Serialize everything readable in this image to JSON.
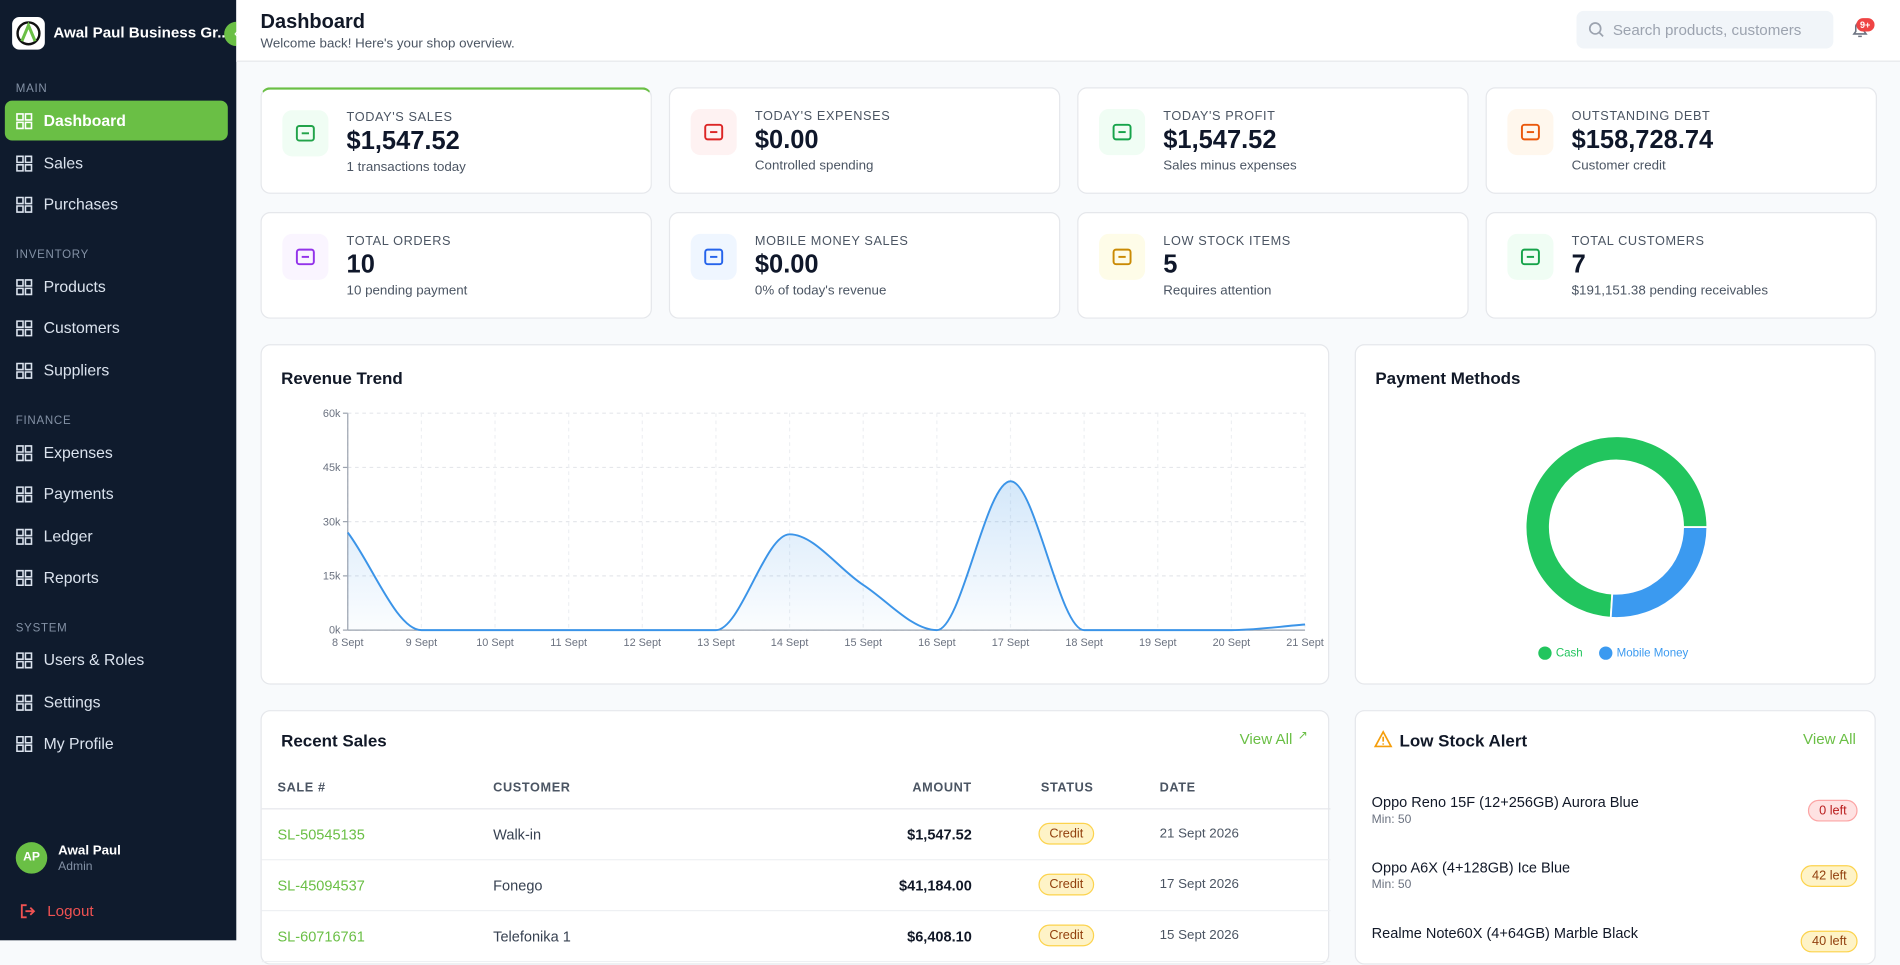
{
  "sidebar": {
    "brand": "Awal Paul Business Gr...",
    "sections": [
      {
        "title": "MAIN",
        "items": [
          "Dashboard",
          "Sales",
          "Purchases"
        ]
      },
      {
        "title": "INVENTORY",
        "items": [
          "Products",
          "Customers",
          "Suppliers"
        ]
      },
      {
        "title": "FINANCE",
        "items": [
          "Expenses",
          "Payments",
          "Ledger",
          "Reports"
        ]
      },
      {
        "title": "SYSTEM",
        "items": [
          "Users & Roles",
          "Settings",
          "My Profile"
        ]
      }
    ],
    "user": {
      "initials": "AP",
      "name": "Awal Paul",
      "role": "Admin"
    },
    "logout": "Logout"
  },
  "header": {
    "title": "Dashboard",
    "subtitle": "Welcome back! Here's your shop overview.",
    "search_placeholder": "Search products, customers",
    "badge": "9+"
  },
  "stats": [
    {
      "label": "TODAY'S SALES",
      "value": "$1,547.52",
      "note": "1 transactions today"
    },
    {
      "label": "TODAY'S EXPENSES",
      "value": "$0.00",
      "note": "Controlled spending"
    },
    {
      "label": "TODAY'S PROFIT",
      "value": "$1,547.52",
      "note": "Sales minus expenses"
    },
    {
      "label": "OUTSTANDING DEBT",
      "value": "$158,728.74",
      "note": "Customer credit"
    },
    {
      "label": "TOTAL ORDERS",
      "value": "10",
      "note": "10 pending payment"
    },
    {
      "label": "MOBILE MONEY SALES",
      "value": "$0.00",
      "note": "0% of today's revenue"
    },
    {
      "label": "LOW STOCK ITEMS",
      "value": "5",
      "note": "Requires attention"
    },
    {
      "label": "TOTAL CUSTOMERS",
      "value": "7",
      "note": "$191,151.38 pending receivables"
    }
  ],
  "chart_data": [
    {
      "type": "line",
      "title": "Revenue Trend",
      "categories": [
        "8 Sept",
        "9 Sept",
        "10 Sept",
        "11 Sept",
        "12 Sept",
        "13 Sept",
        "14 Sept",
        "15 Sept",
        "16 Sept",
        "17 Sept",
        "18 Sept",
        "19 Sept",
        "20 Sept",
        "21 Sept"
      ],
      "series": [
        {
          "name": "Revenue",
          "color": "#3b94e8",
          "values": [
            27000,
            0,
            0,
            0,
            0,
            0,
            26500,
            12500,
            0,
            41184,
            0,
            0,
            0,
            1547.52
          ]
        }
      ],
      "ylim": [
        0,
        60000
      ],
      "yticks": [
        {
          "value": 0,
          "label": "0k"
        },
        {
          "value": 15000,
          "label": "15k"
        },
        {
          "value": 30000,
          "label": "30k"
        },
        {
          "value": 45000,
          "label": "45k"
        },
        {
          "value": 60000,
          "label": "60k"
        }
      ],
      "grid": true
    },
    {
      "type": "pie",
      "title": "Payment Methods",
      "categories": [
        "Cash",
        "Mobile Money"
      ],
      "values": [
        74,
        26
      ],
      "colors": [
        "#22c55e",
        "#3b9af0"
      ],
      "legend": "bottom"
    }
  ],
  "recent_sales": {
    "title": "Recent Sales",
    "view_all": "View All",
    "columns": [
      "SALE #",
      "CUSTOMER",
      "AMOUNT",
      "STATUS",
      "DATE"
    ],
    "rows": [
      [
        "SL-50545135",
        "Walk-in",
        "$1,547.52",
        "Credit",
        "21 Sept 2026"
      ],
      [
        "SL-45094537",
        "Fonego",
        "$41,184.00",
        "Credit",
        "17 Sept 2026"
      ],
      [
        "SL-60716761",
        "Telefonika 1",
        "$6,408.10",
        "Credit",
        "15 Sept 2026"
      ]
    ]
  },
  "low_stock": {
    "title": "Low Stock Alert",
    "view_all": "View All",
    "items": [
      {
        "name": "Oppo Reno 15F (12+256GB) Aurora Blue",
        "min": "Min: 50",
        "badge": "0 left"
      },
      {
        "name": "Oppo A6X (4+128GB) Ice Blue",
        "min": "Min: 50",
        "badge": "42 left"
      },
      {
        "name": "Realme Note60X (4+64GB) Marble Black",
        "badge": "40 left"
      }
    ]
  }
}
